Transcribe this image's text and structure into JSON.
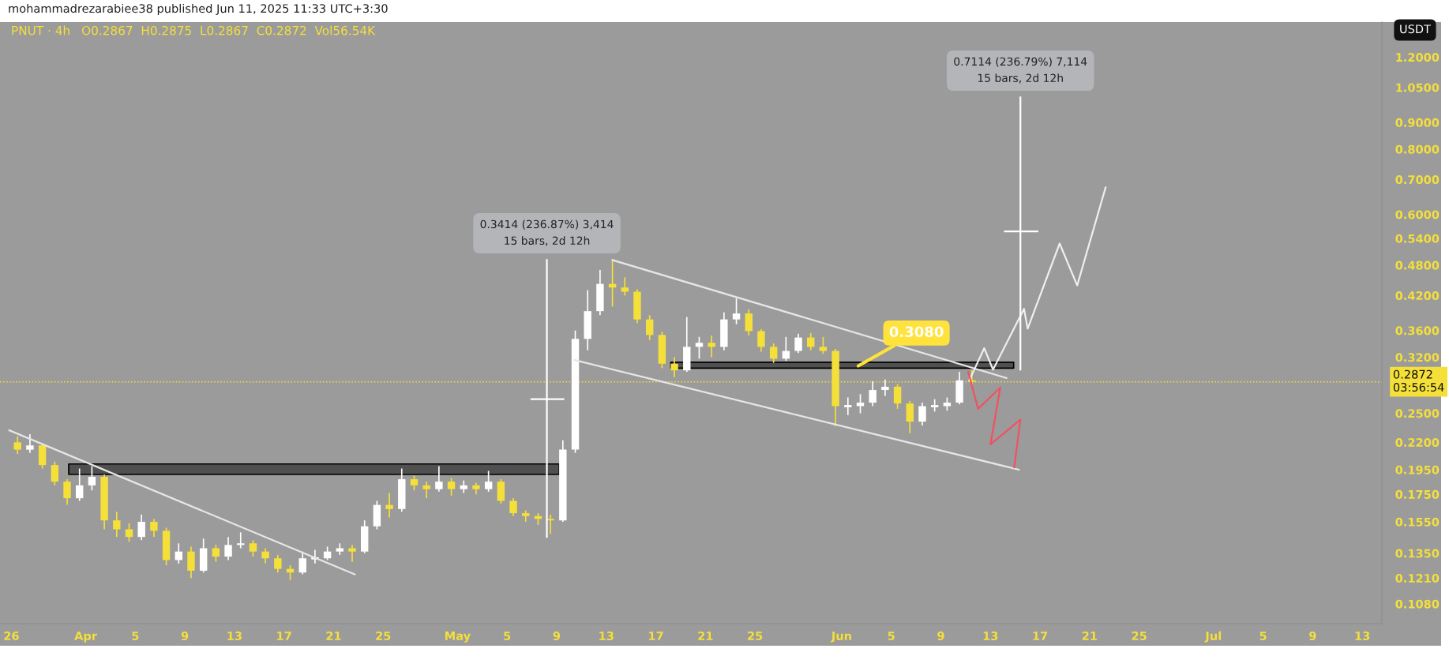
{
  "chart_data": {
    "type": "candlestick",
    "title": "PNUT · 4h",
    "subtitle": "O0.2867  H0.2875  L0.2867  C0.2872  Vol56.54K",
    "x": [
      "2025-03-26T12:00",
      "2025-03-27T12:00",
      "2025-03-28T12:00",
      "2025-03-29T12:00",
      "2025-03-30T12:00",
      "2025-03-31T12:00",
      "2025-04-01T12:00",
      "2025-04-02T12:00",
      "2025-04-03T12:00",
      "2025-04-04T12:00",
      "2025-04-05T12:00",
      "2025-04-06T12:00",
      "2025-04-07T12:00",
      "2025-04-08T12:00",
      "2025-04-09T12:00",
      "2025-04-10T12:00",
      "2025-04-11T12:00",
      "2025-04-12T12:00",
      "2025-04-13T12:00",
      "2025-04-14T12:00",
      "2025-04-15T12:00",
      "2025-04-16T12:00",
      "2025-04-17T12:00",
      "2025-04-18T12:00",
      "2025-04-19T12:00",
      "2025-04-20T12:00",
      "2025-04-21T12:00",
      "2025-04-22T12:00",
      "2025-04-23T12:00",
      "2025-04-24T12:00",
      "2025-04-25T12:00",
      "2025-04-26T12:00",
      "2025-04-27T12:00",
      "2025-04-28T12:00",
      "2025-04-29T12:00",
      "2025-04-30T12:00",
      "2025-05-01T12:00",
      "2025-05-02T12:00",
      "2025-05-03T12:00",
      "2025-05-04T12:00",
      "2025-05-05T12:00",
      "2025-05-06T12:00",
      "2025-05-07T12:00",
      "2025-05-08T12:00",
      "2025-05-09T12:00",
      "2025-05-10T12:00",
      "2025-05-11T12:00",
      "2025-05-12T12:00",
      "2025-05-13T12:00",
      "2025-05-14T12:00",
      "2025-05-15T12:00",
      "2025-05-16T12:00",
      "2025-05-17T12:00",
      "2025-05-18T12:00",
      "2025-05-19T12:00",
      "2025-05-20T12:00",
      "2025-05-21T12:00",
      "2025-05-22T12:00",
      "2025-05-23T12:00",
      "2025-05-24T12:00",
      "2025-05-25T12:00",
      "2025-05-26T12:00",
      "2025-05-27T12:00",
      "2025-05-28T12:00",
      "2025-05-29T12:00",
      "2025-05-30T12:00",
      "2025-05-31T12:00",
      "2025-06-01T12:00",
      "2025-06-02T12:00",
      "2025-06-03T12:00",
      "2025-06-04T12:00",
      "2025-06-05T12:00",
      "2025-06-06T12:00",
      "2025-06-07T12:00",
      "2025-06-08T12:00",
      "2025-06-09T12:00",
      "2025-06-10T12:00",
      "2025-06-11T12:00"
    ],
    "ohlc": [
      [
        0.22,
        0.226,
        0.209,
        0.213
      ],
      [
        0.213,
        0.228,
        0.21,
        0.217
      ],
      [
        0.217,
        0.219,
        0.196,
        0.199
      ],
      [
        0.199,
        0.202,
        0.182,
        0.185
      ],
      [
        0.185,
        0.187,
        0.167,
        0.172
      ],
      [
        0.172,
        0.196,
        0.17,
        0.182
      ],
      [
        0.182,
        0.198,
        0.178,
        0.189
      ],
      [
        0.189,
        0.191,
        0.15,
        0.156
      ],
      [
        0.156,
        0.162,
        0.145,
        0.15
      ],
      [
        0.15,
        0.154,
        0.142,
        0.145
      ],
      [
        0.145,
        0.16,
        0.143,
        0.155
      ],
      [
        0.155,
        0.157,
        0.145,
        0.149
      ],
      [
        0.149,
        0.151,
        0.128,
        0.131
      ],
      [
        0.131,
        0.141,
        0.129,
        0.136
      ],
      [
        0.136,
        0.139,
        0.121,
        0.125
      ],
      [
        0.125,
        0.144,
        0.124,
        0.138
      ],
      [
        0.138,
        0.14,
        0.13,
        0.133
      ],
      [
        0.133,
        0.145,
        0.131,
        0.14
      ],
      [
        0.14,
        0.148,
        0.138,
        0.141
      ],
      [
        0.141,
        0.143,
        0.133,
        0.136
      ],
      [
        0.136,
        0.138,
        0.129,
        0.132
      ],
      [
        0.132,
        0.134,
        0.124,
        0.126
      ],
      [
        0.126,
        0.128,
        0.12,
        0.124
      ],
      [
        0.124,
        0.136,
        0.123,
        0.132
      ],
      [
        0.132,
        0.137,
        0.129,
        0.132
      ],
      [
        0.132,
        0.139,
        0.131,
        0.136
      ],
      [
        0.136,
        0.141,
        0.134,
        0.138
      ],
      [
        0.138,
        0.14,
        0.13,
        0.136
      ],
      [
        0.136,
        0.156,
        0.135,
        0.152
      ],
      [
        0.152,
        0.17,
        0.15,
        0.167
      ],
      [
        0.167,
        0.176,
        0.158,
        0.164
      ],
      [
        0.164,
        0.196,
        0.162,
        0.187
      ],
      [
        0.187,
        0.19,
        0.178,
        0.182
      ],
      [
        0.182,
        0.185,
        0.172,
        0.179
      ],
      [
        0.179,
        0.198,
        0.177,
        0.185
      ],
      [
        0.185,
        0.188,
        0.174,
        0.179
      ],
      [
        0.179,
        0.186,
        0.176,
        0.182
      ],
      [
        0.182,
        0.184,
        0.175,
        0.179
      ],
      [
        0.179,
        0.194,
        0.177,
        0.185
      ],
      [
        0.185,
        0.187,
        0.168,
        0.17
      ],
      [
        0.17,
        0.172,
        0.159,
        0.161
      ],
      [
        0.161,
        0.163,
        0.155,
        0.159
      ],
      [
        0.159,
        0.161,
        0.153,
        0.157
      ],
      [
        0.157,
        0.16,
        0.147,
        0.156
      ],
      [
        0.156,
        0.222,
        0.155,
        0.213
      ],
      [
        0.213,
        0.36,
        0.21,
        0.347
      ],
      [
        0.347,
        0.43,
        0.33,
        0.392
      ],
      [
        0.392,
        0.47,
        0.385,
        0.442
      ],
      [
        0.442,
        0.49,
        0.4,
        0.435
      ],
      [
        0.435,
        0.455,
        0.42,
        0.427
      ],
      [
        0.427,
        0.432,
        0.372,
        0.378
      ],
      [
        0.378,
        0.385,
        0.345,
        0.353
      ],
      [
        0.353,
        0.358,
        0.305,
        0.311
      ],
      [
        0.311,
        0.32,
        0.293,
        0.302
      ],
      [
        0.302,
        0.382,
        0.3,
        0.335
      ],
      [
        0.335,
        0.35,
        0.318,
        0.341
      ],
      [
        0.341,
        0.352,
        0.32,
        0.335
      ],
      [
        0.335,
        0.39,
        0.33,
        0.378
      ],
      [
        0.378,
        0.415,
        0.37,
        0.388
      ],
      [
        0.388,
        0.395,
        0.352,
        0.359
      ],
      [
        0.359,
        0.362,
        0.328,
        0.335
      ],
      [
        0.335,
        0.34,
        0.312,
        0.318
      ],
      [
        0.318,
        0.35,
        0.315,
        0.329
      ],
      [
        0.329,
        0.355,
        0.326,
        0.349
      ],
      [
        0.349,
        0.356,
        0.33,
        0.335
      ],
      [
        0.335,
        0.35,
        0.325,
        0.329
      ],
      [
        0.329,
        0.332,
        0.236,
        0.258
      ],
      [
        0.258,
        0.268,
        0.248,
        0.258
      ],
      [
        0.258,
        0.272,
        0.25,
        0.262
      ],
      [
        0.262,
        0.288,
        0.258,
        0.277
      ],
      [
        0.277,
        0.29,
        0.27,
        0.281
      ],
      [
        0.281,
        0.284,
        0.255,
        0.261
      ],
      [
        0.261,
        0.264,
        0.229,
        0.241
      ],
      [
        0.241,
        0.262,
        0.237,
        0.258
      ],
      [
        0.258,
        0.266,
        0.252,
        0.258
      ],
      [
        0.258,
        0.268,
        0.253,
        0.262
      ],
      [
        0.262,
        0.3,
        0.26,
        0.289
      ],
      [
        0.289,
        0.302,
        0.282,
        0.2872
      ]
    ],
    "colors": [
      "#f5e03a",
      "#ffffff",
      "#f5e03a",
      "#f5e03a",
      "#f5e03a",
      "#ffffff",
      "#ffffff",
      "#f5e03a",
      "#f5e03a",
      "#f5e03a",
      "#ffffff",
      "#f5e03a",
      "#f5e03a",
      "#ffffff",
      "#f5e03a",
      "#ffffff",
      "#f5e03a",
      "#ffffff",
      "#ffffff",
      "#f5e03a",
      "#f5e03a",
      "#f5e03a",
      "#f5e03a",
      "#ffffff",
      "#ffffff",
      "#ffffff",
      "#ffffff",
      "#f5e03a",
      "#ffffff",
      "#ffffff",
      "#f5e03a",
      "#ffffff",
      "#f5e03a",
      "#f5e03a",
      "#ffffff",
      "#f5e03a",
      "#ffffff",
      "#f5e03a",
      "#ffffff",
      "#f5e03a",
      "#f5e03a",
      "#f5e03a",
      "#f5e03a",
      "#f5e03a",
      "#ffffff",
      "#ffffff",
      "#ffffff",
      "#ffffff",
      "#f5e03a",
      "#f5e03a",
      "#f5e03a",
      "#f5e03a",
      "#f5e03a",
      "#f5e03a",
      "#ffffff",
      "#ffffff",
      "#f5e03a",
      "#ffffff",
      "#ffffff",
      "#f5e03a",
      "#f5e03a",
      "#f5e03a",
      "#ffffff",
      "#ffffff",
      "#f5e03a",
      "#f5e03a",
      "#f5e03a",
      "#ffffff",
      "#ffffff",
      "#ffffff",
      "#ffffff",
      "#f5e03a",
      "#f5e03a",
      "#ffffff",
      "#ffffff",
      "#ffffff",
      "#ffffff",
      "#f5e03a"
    ],
    "series": [
      {
        "type": "line",
        "color": "#e6e6e6",
        "x": [
          "2025-03-25T20:00",
          "2025-04-22T17:00"
        ],
        "values": [
          0.232,
          0.123
        ]
      },
      {
        "type": "line",
        "color": "#e6e6e6",
        "x": [
          "2025-05-13T12:00",
          "2025-06-14T07:00"
        ],
        "values": [
          0.491,
          0.292
        ]
      },
      {
        "type": "line",
        "color": "#e6e6e6",
        "x": [
          "2025-05-10T11:00",
          "2025-06-15T07:00"
        ],
        "values": [
          0.316,
          0.195
        ]
      },
      {
        "type": "line",
        "color": "#eeeeee",
        "x": [
          "2025-06-11T07:00",
          "2025-06-12T12:00",
          "2025-06-13T05:00",
          "2025-06-15T17:00",
          "2025-06-16T00:00",
          "2025-06-18T14:00",
          "2025-06-20T00:00",
          "2025-06-22T07:00"
        ],
        "values": [
          0.289,
          0.333,
          0.303,
          0.396,
          0.363,
          0.528,
          0.439,
          0.676
        ]
      },
      {
        "type": "line",
        "color": "#f05262",
        "x": [
          "2025-06-11T05:00",
          "2025-06-12T00:00",
          "2025-06-13T19:00",
          "2025-06-13T00:00",
          "2025-06-15T10:00",
          "2025-06-14T22:00"
        ],
        "values": [
          0.3,
          0.255,
          0.28,
          0.218,
          0.243,
          0.197
        ]
      },
      {
        "type": "line",
        "color": "#ffffff",
        "x": [
          "2025-05-08T05:00",
          "2025-05-08T05:00"
        ],
        "values": [
          0.145,
          0.491
        ]
      },
      {
        "type": "line",
        "color": "#ffffff",
        "x": [
          "2025-05-06T23:00",
          "2025-05-09T13:00"
        ],
        "values": [
          0.266,
          0.266
        ]
      },
      {
        "type": "line",
        "color": "#ffffff",
        "x": [
          "2025-06-15T10:00",
          "2025-06-15T10:00"
        ],
        "values": [
          0.303,
          1.005
        ]
      },
      {
        "type": "line",
        "color": "#ffffff",
        "x": [
          "2025-06-14T04:00",
          "2025-06-16T19:00"
        ],
        "values": [
          0.557,
          0.557
        ]
      },
      {
        "type": "line",
        "color": "#505050",
        "x": [
          "2025-03-30T15:00",
          "2025-05-09T05:00"
        ],
        "values": [
          null,
          null
        ],
        "lower": [
          0.191,
          0.191
        ],
        "upper": [
          0.2,
          0.2
        ]
      },
      {
        "type": "line",
        "color": "#505050",
        "x": [
          "2025-05-18T05:00",
          "2025-06-14T21:00"
        ],
        "values": [
          null,
          null
        ],
        "lower": [
          0.305,
          0.305
        ],
        "upper": [
          0.313,
          0.313
        ]
      }
    ],
    "log": "y",
    "xlim": [
      "2025-03-25T02:00",
      "2025-07-14T14:00"
    ],
    "xticks": [
      {
        "value": "2025-03-26",
        "label": "26"
      },
      {
        "value": "2025-04-01",
        "label": "Apr"
      },
      {
        "value": "2025-04-05",
        "label": "5"
      },
      {
        "value": "2025-04-09",
        "label": "9"
      },
      {
        "value": "2025-04-13",
        "label": "13"
      },
      {
        "value": "2025-04-17",
        "label": "17"
      },
      {
        "value": "2025-04-21",
        "label": "21"
      },
      {
        "value": "2025-04-25",
        "label": "25"
      },
      {
        "value": "2025-05-01",
        "label": "May"
      },
      {
        "value": "2025-05-05",
        "label": "5"
      },
      {
        "value": "2025-05-09",
        "label": "9"
      },
      {
        "value": "2025-05-13",
        "label": "13"
      },
      {
        "value": "2025-05-17",
        "label": "17"
      },
      {
        "value": "2025-05-21",
        "label": "21"
      },
      {
        "value": "2025-05-25",
        "label": "25"
      },
      {
        "value": "2025-06-01",
        "label": "Jun"
      },
      {
        "value": "2025-06-05",
        "label": "5"
      },
      {
        "value": "2025-06-09",
        "label": "9"
      },
      {
        "value": "2025-06-13",
        "label": "13"
      },
      {
        "value": "2025-06-17",
        "label": "17"
      },
      {
        "value": "2025-06-21",
        "label": "21"
      },
      {
        "value": "2025-06-25",
        "label": "25"
      },
      {
        "value": "2025-07-01",
        "label": "Jul"
      },
      {
        "value": "2025-07-05",
        "label": "5"
      },
      {
        "value": "2025-07-09",
        "label": "9"
      },
      {
        "value": "2025-07-13",
        "label": "13"
      }
    ],
    "ylim": [
      0.099,
      1.4
    ],
    "yticks": [
      {
        "value": 0.108,
        "label": "0.1080"
      },
      {
        "value": 0.121,
        "label": "0.1210"
      },
      {
        "value": 0.135,
        "label": "0.1350"
      },
      {
        "value": 0.155,
        "label": "0.1550"
      },
      {
        "value": 0.175,
        "label": "0.1750"
      },
      {
        "value": 0.195,
        "label": "0.1950"
      },
      {
        "value": 0.22,
        "label": "0.2200"
      },
      {
        "value": 0.25,
        "label": "0.2500"
      },
      {
        "value": 0.32,
        "label": "0.3200"
      },
      {
        "value": 0.36,
        "label": "0.3600"
      },
      {
        "value": 0.42,
        "label": "0.4200"
      },
      {
        "value": 0.48,
        "label": "0.4800"
      },
      {
        "value": 0.54,
        "label": "0.5400"
      },
      {
        "value": 0.6,
        "label": "0.6000"
      },
      {
        "value": 0.7,
        "label": "0.7000"
      },
      {
        "value": 0.8,
        "label": "0.8000"
      },
      {
        "value": 0.9,
        "label": "0.9000"
      },
      {
        "value": 1.05,
        "label": "1.0500"
      },
      {
        "value": 1.2,
        "label": "1.2000"
      }
    ],
    "ref_lines": [
      {
        "axis": "y",
        "value": 0.2872,
        "label": "0.2872\n03:56:54",
        "color": "#f5e03a",
        "line_style": "dotted"
      }
    ],
    "annotations": [
      "mohammadrezarabiee38 published Jun 11, 2025 11:33 UTC+3:30",
      "USDT",
      {
        "text": "0.3414 (236.87%) 3,414\n15 bars, 2d 12h",
        "x": "2025-05-08T05:00",
        "y": 0.491
      },
      {
        "text": "0.7114 (236.79%) 7,114\n15 bars, 2d 12h",
        "x": "2025-06-15T10:00",
        "y": 1.005
      },
      {
        "text": "0.3080",
        "x": "2025-06-02T08:00",
        "y": 0.308
      }
    ]
  }
}
